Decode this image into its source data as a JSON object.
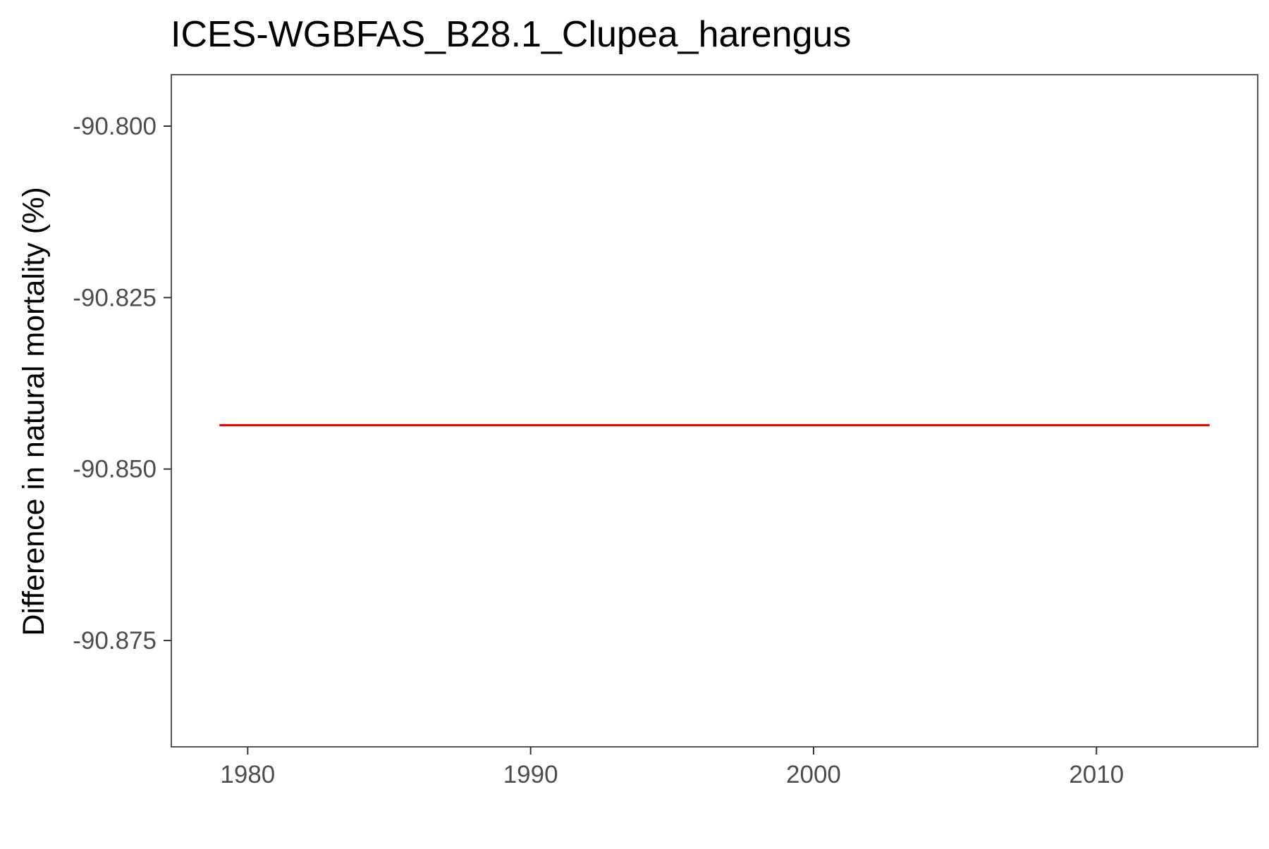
{
  "colors": {
    "line": "#ff0000",
    "panel_border": "#444444",
    "tick_text": "#4d4d4d",
    "title_text": "#000000"
  },
  "chart_data": {
    "type": "line",
    "title": "ICES-WGBFAS_B28.1_Clupea_harengus",
    "xlabel": "",
    "ylabel": "Difference in natural mortality (%)",
    "xlim": [
      1977.3,
      2015.7
    ],
    "ylim": [
      -90.8905,
      -90.7925
    ],
    "x_ticks": [
      1980,
      1990,
      2000,
      2010
    ],
    "y_ticks": [
      -90.8,
      -90.825,
      -90.85,
      -90.875
    ],
    "y_tick_labels": [
      "-90.800",
      "-90.825",
      "-90.850",
      "-90.875"
    ],
    "grid": false,
    "legend": "none",
    "series": [
      {
        "color": "#ff0000",
        "x": [
          1979,
          2014
        ],
        "y": [
          -90.8436,
          -90.8436
        ]
      }
    ]
  }
}
